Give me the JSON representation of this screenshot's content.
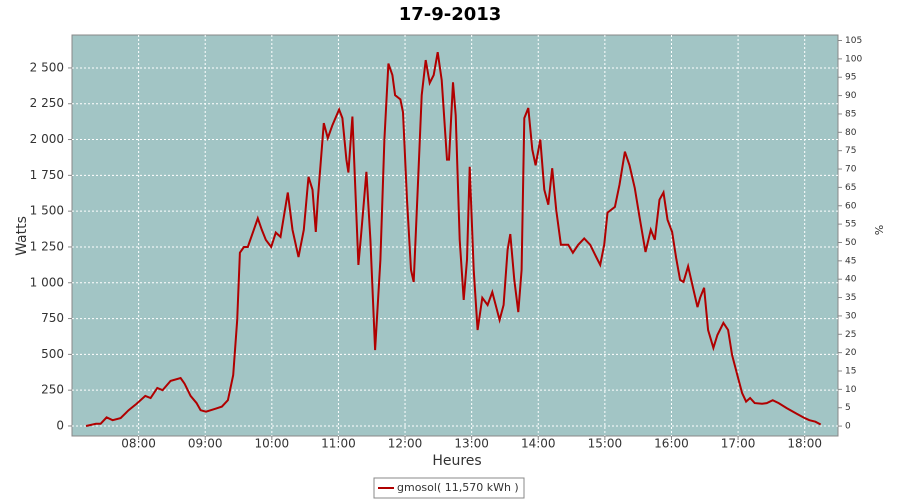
{
  "chart_data": {
    "type": "line",
    "title": "17-9-2013",
    "xlabel": "Heures",
    "ylabel": "Watts",
    "y2label": "%",
    "x": [
      7.21,
      7.36,
      7.43,
      7.52,
      7.61,
      7.73,
      7.85,
      7.97,
      8.1,
      8.18,
      8.28,
      8.36,
      8.48,
      8.63,
      8.69,
      8.78,
      8.87,
      8.93,
      9.01,
      9.15,
      9.25,
      9.34,
      9.42,
      9.48,
      9.52,
      9.58,
      9.64,
      9.73,
      9.79,
      9.85,
      9.91,
      9.99,
      10.06,
      10.13,
      10.24,
      10.31,
      10.4,
      10.48,
      10.55,
      10.61,
      10.66,
      10.69,
      10.78,
      10.84,
      10.91,
      11.01,
      11.06,
      11.12,
      11.15,
      11.21,
      11.3,
      11.34,
      11.42,
      11.48,
      11.55,
      11.63,
      11.69,
      11.75,
      11.81,
      11.85,
      11.93,
      11.97,
      12.03,
      12.09,
      12.13,
      12.19,
      12.25,
      12.31,
      12.37,
      12.43,
      12.49,
      12.55,
      12.63,
      12.66,
      12.72,
      12.76,
      12.82,
      12.88,
      12.93,
      12.97,
      13.03,
      13.09,
      13.16,
      13.24,
      13.31,
      13.42,
      13.48,
      13.54,
      13.58,
      13.64,
      13.7,
      13.75,
      13.79,
      13.85,
      13.91,
      13.96,
      14.03,
      14.09,
      14.15,
      14.21,
      14.27,
      14.34,
      14.45,
      14.52,
      14.6,
      14.69,
      14.78,
      14.87,
      14.93,
      14.99,
      15.04,
      15.15,
      15.22,
      15.3,
      15.37,
      15.45,
      15.52,
      15.61,
      15.69,
      15.75,
      15.82,
      15.88,
      15.94,
      16.01,
      16.07,
      16.13,
      16.18,
      16.25,
      16.33,
      16.39,
      16.43,
      16.49,
      16.55,
      16.63,
      16.69,
      16.78,
      16.85,
      16.91,
      17.0,
      17.06,
      17.12,
      17.18,
      17.25,
      17.36,
      17.43,
      17.52,
      17.61,
      17.73,
      17.88,
      18.0,
      18.07,
      18.16,
      18.24
    ],
    "series": [
      {
        "name": "gmosol( 11,570 kWh )",
        "color": "#b00000",
        "values": [
          0,
          15,
          15,
          60,
          40,
          55,
          110,
          155,
          210,
          195,
          265,
          250,
          315,
          335,
          295,
          210,
          160,
          110,
          100,
          120,
          135,
          180,
          355,
          740,
          1210,
          1250,
          1250,
          1370,
          1450,
          1370,
          1300,
          1250,
          1350,
          1320,
          1630,
          1370,
          1180,
          1370,
          1740,
          1650,
          1355,
          1580,
          2115,
          2010,
          2100,
          2210,
          2150,
          1860,
          1770,
          2160,
          1125,
          1335,
          1775,
          1300,
          530,
          1160,
          2000,
          2530,
          2450,
          2310,
          2280,
          2190,
          1580,
          1090,
          1005,
          1650,
          2310,
          2555,
          2395,
          2450,
          2610,
          2415,
          1860,
          1860,
          2400,
          2170,
          1300,
          880,
          1160,
          1810,
          1090,
          670,
          895,
          845,
          935,
          740,
          845,
          1230,
          1340,
          1020,
          795,
          1090,
          2150,
          2220,
          1930,
          1820,
          2000,
          1650,
          1545,
          1800,
          1510,
          1265,
          1265,
          1210,
          1265,
          1310,
          1265,
          1180,
          1125,
          1265,
          1490,
          1530,
          1685,
          1915,
          1820,
          1660,
          1460,
          1215,
          1370,
          1300,
          1580,
          1630,
          1440,
          1355,
          1175,
          1020,
          1005,
          1115,
          950,
          830,
          895,
          965,
          670,
          545,
          635,
          720,
          670,
          495,
          335,
          230,
          170,
          195,
          160,
          155,
          160,
          180,
          160,
          125,
          85,
          55,
          40,
          30,
          10
        ]
      }
    ],
    "xlim": [
      7.0,
      18.5
    ],
    "xticks": [
      {
        "value": 8,
        "label": "08:00"
      },
      {
        "value": 9,
        "label": "09:00"
      },
      {
        "value": 10,
        "label": "10:00"
      },
      {
        "value": 11,
        "label": "11:00"
      },
      {
        "value": 12,
        "label": "12:00"
      },
      {
        "value": 13,
        "label": "13:00"
      },
      {
        "value": 14,
        "label": "14:00"
      },
      {
        "value": 15,
        "label": "15:00"
      },
      {
        "value": 16,
        "label": "16:00"
      },
      {
        "value": 17,
        "label": "17:00"
      },
      {
        "value": 18,
        "label": "18:00"
      }
    ],
    "ylim": [
      -70,
      2730
    ],
    "yticks": [
      0,
      250,
      500,
      750,
      {
        "value": 1000,
        "label": "1 000"
      },
      {
        "value": 1250,
        "label": "1 250"
      },
      {
        "value": 1500,
        "label": "1 500"
      },
      {
        "value": 1750,
        "label": "1 750"
      },
      {
        "value": 2000,
        "label": "2 000"
      },
      {
        "value": 2250,
        "label": "2 250"
      },
      {
        "value": 2500,
        "label": "2 500"
      }
    ],
    "y2lim": [
      -2.7,
      106.5
    ],
    "y2ticks": [
      0,
      5,
      10,
      15,
      20,
      25,
      30,
      35,
      40,
      45,
      50,
      55,
      60,
      65,
      70,
      75,
      80,
      85,
      90,
      95,
      100,
      105
    ],
    "grid": true,
    "background": "#a2c5c5",
    "legend": "bottom"
  }
}
